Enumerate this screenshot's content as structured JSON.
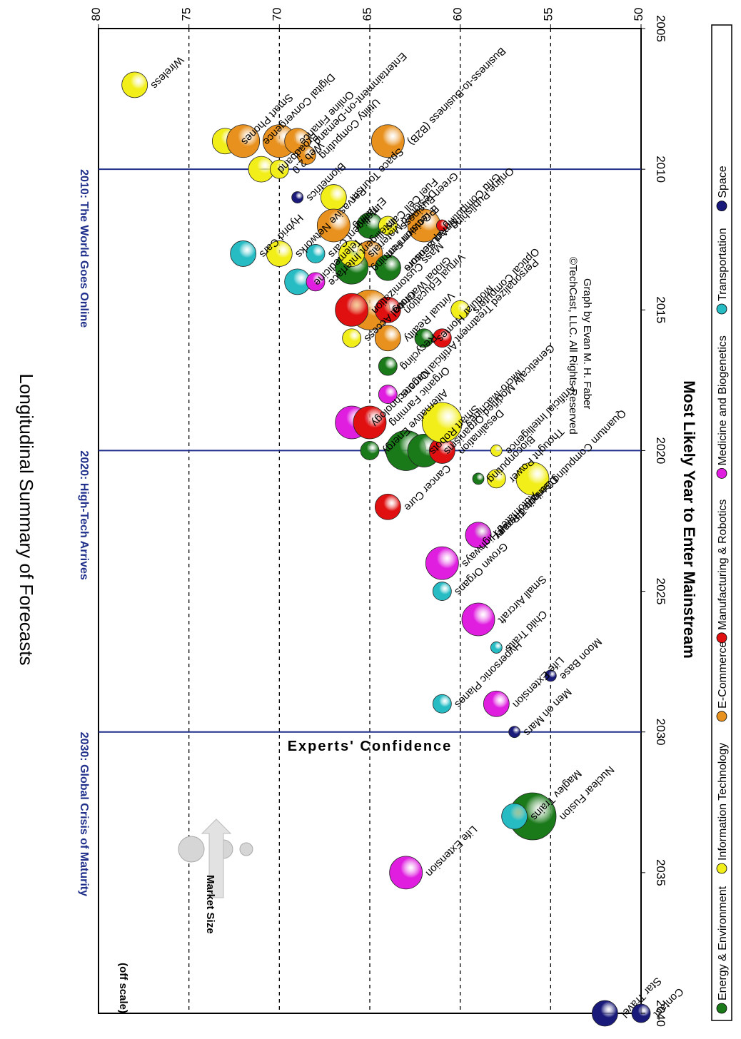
{
  "chart_data": {
    "type": "scatter",
    "title": "Longitudinal Summary of Forecasts",
    "xlabel": "Most Likely Year to Enter Mainstream",
    "ylabel": "Experts' Confidence",
    "xlim": [
      2005,
      2040
    ],
    "ylim": [
      50,
      80
    ],
    "x_ticks": [
      "2005",
      "2010",
      "2015",
      "2020",
      "2025",
      "2030",
      "2035",
      "2040"
    ],
    "y_ticks": [
      "50",
      "55",
      "60",
      "65",
      "70",
      "75",
      "80"
    ],
    "grid": "dashed horizontal lines at 55, 60, 65, 70, 75",
    "eras": [
      {
        "year": 2010,
        "label": "2010: The World Goes Online"
      },
      {
        "year": 2020,
        "label": "2020: High-Tech Arrives"
      },
      {
        "year": 2030,
        "label": "2030: Global Crisis of Maturity"
      }
    ],
    "categories": [
      {
        "name": "Energy & Environment",
        "color": "#1a7a1a"
      },
      {
        "name": "Information Technology",
        "color": "#f2ee1a"
      },
      {
        "name": "E-Commerce",
        "color": "#e8911e"
      },
      {
        "name": "Manufacturing & Robotics",
        "color": "#e01010"
      },
      {
        "name": "Medicine and Biogenetics",
        "color": "#e01ee0"
      },
      {
        "name": "Transportation",
        "color": "#27bcc4"
      },
      {
        "name": "Space",
        "color": "#1a1a7a"
      }
    ],
    "market_size_key": {
      "label": "Market Size"
    },
    "off_scale_note": "(off scale)",
    "copyright": "©TechCast, LLC. All Rights Reserved",
    "credit": "Graph by Evan M. H. Faber",
    "points": [
      {
        "name": "Wireless",
        "cat": 1,
        "x": 2007,
        "y": 78,
        "size": 2
      },
      {
        "name": "Smart Phones",
        "cat": 1,
        "x": 2009,
        "y": 73,
        "size": 2
      },
      {
        "name": "Digital Convergence",
        "cat": 2,
        "x": 2009,
        "y": 72,
        "size": 3
      },
      {
        "name": "Online Finance",
        "cat": 2,
        "x": 2009,
        "y": 70,
        "size": 3
      },
      {
        "name": "Entertainment-on-Demand",
        "cat": 2,
        "x": 2009,
        "y": 69,
        "size": 2
      },
      {
        "name": "Broadband",
        "cat": 1,
        "x": 2010,
        "y": 71,
        "size": 2
      },
      {
        "name": "Web 2.0",
        "cat": 1,
        "x": 2010,
        "y": 70,
        "size": 1
      },
      {
        "name": "Utility Computing",
        "cat": 2,
        "x": 2009.5,
        "y": 68.5,
        "size": 1
      },
      {
        "name": "Business-to-Business (B2B)",
        "cat": 2,
        "x": 2009,
        "y": 64,
        "size": 3
      },
      {
        "name": "Biometrics",
        "cat": 6,
        "x": 2011,
        "y": 69,
        "size": 0
      },
      {
        "name": "Space Tourism",
        "cat": 1,
        "x": 2011,
        "y": 67,
        "size": 2
      },
      {
        "name": "E-Tailing",
        "cat": 2,
        "x": 2012,
        "y": 67,
        "size": 3
      },
      {
        "name": "Fuel Cell Cars",
        "cat": 0,
        "x": 2012,
        "y": 65,
        "size": 2
      },
      {
        "name": "Green Business",
        "cat": 1,
        "x": 2012,
        "y": 64,
        "size": 1
      },
      {
        "name": "Grid Computing",
        "cat": 2,
        "x": 2012,
        "y": 62,
        "size": 3
      },
      {
        "name": "Online Publishing",
        "cat": 3,
        "x": 2012,
        "y": 61,
        "size": 0
      },
      {
        "name": "E-Government",
        "cat": 2,
        "x": 2013,
        "y": 65,
        "size": 2
      },
      {
        "name": "Smart Sensors",
        "cat": 0,
        "x": 2013.5,
        "y": 64,
        "size": 2
      },
      {
        "name": "Hybrid Cars",
        "cat": 5,
        "x": 2013,
        "y": 72,
        "size": 2
      },
      {
        "name": "Pervasive Networks",
        "cat": 1,
        "x": 2013,
        "y": 70,
        "size": 2
      },
      {
        "name": "Intelligent Cars",
        "cat": 5,
        "x": 2013,
        "y": 68,
        "size": 1
      },
      {
        "name": "Telemedicine",
        "cat": 5,
        "x": 2014,
        "y": 69,
        "size": 2
      },
      {
        "name": "Intelligent Interface",
        "cat": 4,
        "x": 2014,
        "y": 68,
        "size": 1
      },
      {
        "name": "Precision Farming",
        "cat": 0,
        "x": 2013.5,
        "y": 66,
        "size": 3
      },
      {
        "name": "Designed Materials",
        "cat": 1,
        "x": 2013,
        "y": 66,
        "size": 2
      },
      {
        "name": "Aquaculture",
        "cat": 0,
        "x": 2013.5,
        "y": 64,
        "size": 2
      },
      {
        "name": "Global Warming",
        "cat": 2,
        "x": 2015,
        "y": 65,
        "size": 4
      },
      {
        "name": "Mass Customization",
        "cat": 3,
        "x": 2015,
        "y": 66,
        "size": 3
      },
      {
        "name": "Virtual Reality",
        "cat": 2,
        "x": 2016,
        "y": 64,
        "size": 2
      },
      {
        "name": "Global Access",
        "cat": 1,
        "x": 2016,
        "y": 66,
        "size": 1
      },
      {
        "name": "Virtual Education",
        "cat": 3,
        "x": 2015,
        "y": 64,
        "size": 2
      },
      {
        "name": "Optical Computers",
        "cat": 1,
        "x": 2015,
        "y": 60,
        "size": 1
      },
      {
        "name": "Modular Homes",
        "cat": 0,
        "x": 2016,
        "y": 62,
        "size": 1
      },
      {
        "name": "Personalized Treatment",
        "cat": 3,
        "x": 2016,
        "y": 61,
        "size": 1
      },
      {
        "name": "Recycling",
        "cat": 0,
        "x": 2017,
        "y": 64,
        "size": 1
      },
      {
        "name": "Artificial Organs",
        "cat": 4,
        "x": 2018,
        "y": 64,
        "size": 1
      },
      {
        "name": "Nanotechnology",
        "cat": 4,
        "x": 2019,
        "y": 66,
        "size": 3
      },
      {
        "name": "Organic Farming",
        "cat": 3,
        "x": 2019,
        "y": 65,
        "size": 3
      },
      {
        "name": "Alternative Energy",
        "cat": 0,
        "x": 2020,
        "y": 65,
        "size": 1
      },
      {
        "name": "Smart Robots",
        "cat": 0,
        "x": 2020,
        "y": 63,
        "size": 4
      },
      {
        "name": "Genetically Modified Organisms",
        "cat": 0,
        "x": 2020,
        "y": 62,
        "size": 3
      },
      {
        "name": "Desalination",
        "cat": 3,
        "x": 2020,
        "y": 61,
        "size": 2
      },
      {
        "name": "Micro-Machines",
        "cat": 1,
        "x": 2019,
        "y": 61,
        "size": 4
      },
      {
        "name": "Artificial Intelligence",
        "cat": 1,
        "x": 2020,
        "y": 58,
        "size": 0
      },
      {
        "name": "Bioconputing",
        "cat": 0,
        "x": 2021,
        "y": 59,
        "size": 0
      },
      {
        "name": "Thought Power",
        "cat": 1,
        "x": 2021,
        "y": 58,
        "size": 1
      },
      {
        "name": "Quantum Computing",
        "cat": 1,
        "x": 2021,
        "y": 56,
        "size": 3
      },
      {
        "name": "Cancer Cure",
        "cat": 3,
        "x": 2022,
        "y": 64,
        "size": 2
      },
      {
        "name": "Distributed Power",
        "cat": 0,
        "x": 2023,
        "y": 59,
        "size": 2
      },
      {
        "name": "Genetic Therapy",
        "cat": 4,
        "x": 2023,
        "y": 59,
        "size": 2
      },
      {
        "name": "Automated Highways",
        "cat": 4,
        "x": 2024,
        "y": 61,
        "size": 3
      },
      {
        "name": "Grown Organs",
        "cat": 5,
        "x": 2025,
        "y": 61,
        "size": 1
      },
      {
        "name": "Small Aircraft",
        "cat": 4,
        "x": 2026,
        "y": 59,
        "size": 3
      },
      {
        "name": "Child Traits",
        "cat": 5,
        "x": 2027,
        "y": 58,
        "size": 0
      },
      {
        "name": "Hypersonic Planes",
        "cat": 5,
        "x": 2029,
        "y": 61,
        "size": 1
      },
      {
        "name": "Moon Base",
        "cat": 6,
        "x": 2028,
        "y": 55,
        "size": 0
      },
      {
        "name": "Men on Mars",
        "cat": 6,
        "x": 2030,
        "y": 57,
        "size": 0
      },
      {
        "name": "Life Extension",
        "cat": 4,
        "x": 2029,
        "y": 58,
        "size": 2
      },
      {
        "name": "Nuclear Fusion",
        "cat": 0,
        "x": 2033,
        "y": 56,
        "size": 5
      },
      {
        "name": "Maglev Trains",
        "cat": 5,
        "x": 2033,
        "y": 57,
        "size": 2
      },
      {
        "name": "Life Extension",
        "cat": 4,
        "x": 2035,
        "y": 63,
        "size": 3
      },
      {
        "name": "Star Travel",
        "cat": 6,
        "x": 2040,
        "y": 52,
        "size": 2
      },
      {
        "name": "Contact",
        "cat": 6,
        "x": 2040,
        "y": 50,
        "size": 1
      }
    ]
  }
}
